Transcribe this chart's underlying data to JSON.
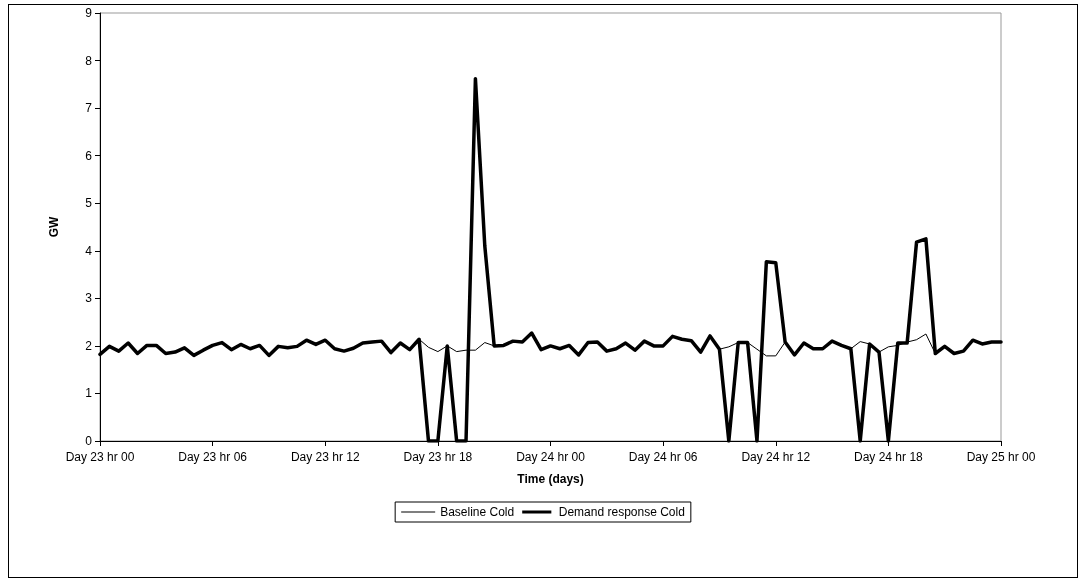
{
  "chart_data": {
    "type": "line",
    "xlabel": "Time (days)",
    "ylabel": "GW",
    "categories": [
      "Day 23 hr 00",
      null,
      null,
      null,
      null,
      null,
      null,
      null,
      null,
      null,
      null,
      null,
      "Day 23 hr 06",
      null,
      null,
      null,
      null,
      null,
      null,
      null,
      null,
      null,
      null,
      null,
      "Day 23 hr 12",
      null,
      null,
      null,
      null,
      null,
      null,
      null,
      null,
      null,
      null,
      null,
      "Day 23 hr 18",
      null,
      null,
      null,
      null,
      null,
      null,
      null,
      null,
      null,
      null,
      null,
      "Day 24 hr 00",
      null,
      null,
      null,
      null,
      null,
      null,
      null,
      null,
      null,
      null,
      null,
      "Day 24 hr 06",
      null,
      null,
      null,
      null,
      null,
      null,
      null,
      null,
      null,
      null,
      null,
      "Day 24 hr 12",
      null,
      null,
      null,
      null,
      null,
      null,
      null,
      null,
      null,
      null,
      null,
      "Day 24 hr 18",
      null,
      null,
      null,
      null,
      null,
      null,
      null,
      null,
      null,
      null,
      null,
      "Day 25 hr 00"
    ],
    "series": [
      {
        "name": "Baseline Cold",
        "color": "#000000",
        "values": [
          1.82,
          1.99,
          1.89,
          2.06,
          1.84,
          2.01,
          2.01,
          1.84,
          1.87,
          1.96,
          1.8,
          1.91,
          2.01,
          2.07,
          1.92,
          2.03,
          1.94,
          2.01,
          1.8,
          1.99,
          1.96,
          1.99,
          2.12,
          2.03,
          2.12,
          1.94,
          1.89,
          1.95,
          2.06,
          2.08,
          2.1,
          1.86,
          2.06,
          1.92,
          2.14,
          1.97,
          1.88,
          2.0,
          1.88,
          1.91,
          1.91,
          2.07,
          2.0,
          2.01,
          2.1,
          2.08,
          2.27,
          1.92,
          2.0,
          1.94,
          2.01,
          1.81,
          2.07,
          2.08,
          1.89,
          1.94,
          2.06,
          1.91,
          2.1,
          2.0,
          2.0,
          2.2,
          2.14,
          2.11,
          1.87,
          2.21,
          1.93,
          1.98,
          2.07,
          2.07,
          1.93,
          1.79,
          1.79,
          2.08,
          1.81,
          2.06,
          1.94,
          1.94,
          2.1,
          2.01,
          1.94,
          2.09,
          2.04,
          1.87,
          1.98,
          2.01,
          2.08,
          2.13,
          2.25,
          1.84,
          1.99,
          1.84,
          1.89,
          2.12,
          2.04,
          2.08,
          2.08
        ]
      },
      {
        "name": "Demand response Cold",
        "color": "#000000",
        "values": [
          1.82,
          1.99,
          1.89,
          2.06,
          1.84,
          2.01,
          2.01,
          1.84,
          1.87,
          1.96,
          1.8,
          1.91,
          2.01,
          2.07,
          1.92,
          2.03,
          1.94,
          2.01,
          1.8,
          1.99,
          1.96,
          1.99,
          2.12,
          2.03,
          2.12,
          1.94,
          1.89,
          1.95,
          2.06,
          2.08,
          2.1,
          1.86,
          2.06,
          1.92,
          2.14,
          0,
          0,
          2.0,
          0,
          0,
          7.62,
          4.1,
          2.0,
          2.01,
          2.1,
          2.08,
          2.27,
          1.92,
          2.0,
          1.94,
          2.01,
          1.81,
          2.07,
          2.08,
          1.89,
          1.94,
          2.06,
          1.91,
          2.1,
          2.0,
          2.0,
          2.2,
          2.14,
          2.11,
          1.87,
          2.21,
          1.93,
          0,
          2.07,
          2.07,
          0,
          3.77,
          3.75,
          2.08,
          1.81,
          2.06,
          1.94,
          1.94,
          2.1,
          2.01,
          1.94,
          0,
          2.04,
          1.87,
          0,
          2.06,
          2.06,
          4.18,
          4.25,
          1.84,
          1.99,
          1.84,
          1.89,
          2.12,
          2.04,
          2.08,
          2.08
        ]
      }
    ],
    "ylim": [
      0,
      9
    ],
    "yticks": [
      0,
      1,
      2,
      3,
      4,
      5,
      6,
      7,
      8,
      9
    ],
    "grid": false,
    "legend": "bottom",
    "marker": "none",
    "line_style": "solid"
  }
}
